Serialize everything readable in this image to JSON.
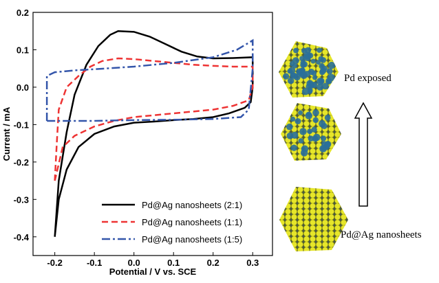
{
  "chart_data": {
    "type": "line",
    "x_label": "Potential / V vs. SCE",
    "y_label": "Current / mA",
    "xlim": [
      -0.255,
      0.35
    ],
    "ylim": [
      -0.45,
      0.2
    ],
    "xticks": [
      -0.2,
      -0.1,
      {
        "value": 0,
        "label": "0.0"
      },
      0.1,
      0.2,
      0.3
    ],
    "yticks": [
      0.2,
      0.1,
      {
        "value": 0,
        "label": "0.0"
      },
      -0.1,
      -0.2,
      -0.3,
      -0.4
    ],
    "legend": "lower right",
    "series": [
      {
        "name": "Pd@Ag nanosheets (2:1)",
        "color": "#000000",
        "dash": "solid",
        "x": [
          -0.2,
          -0.19,
          -0.17,
          -0.15,
          -0.12,
          -0.09,
          -0.06,
          -0.04,
          0.0,
          0.04,
          0.08,
          0.12,
          0.16,
          0.2,
          0.25,
          0.3,
          0.3,
          0.295,
          0.28,
          0.24,
          0.2,
          0.15,
          0.1,
          0.05,
          0.0,
          -0.05,
          -0.1,
          -0.14,
          -0.17,
          -0.19,
          -0.2
        ],
        "values": [
          -0.4,
          -0.25,
          -0.12,
          -0.02,
          0.06,
          0.11,
          0.14,
          0.15,
          0.148,
          0.135,
          0.115,
          0.095,
          0.082,
          0.077,
          0.078,
          0.08,
          0.0,
          -0.04,
          -0.055,
          -0.07,
          -0.08,
          -0.085,
          -0.088,
          -0.092,
          -0.095,
          -0.105,
          -0.125,
          -0.16,
          -0.22,
          -0.3,
          -0.4
        ]
      },
      {
        "name": "Pd@Ag nanosheets (1:1)",
        "color": "#ee3333",
        "dash": "dashed",
        "x": [
          -0.2,
          -0.195,
          -0.19,
          -0.17,
          -0.14,
          -0.11,
          -0.08,
          -0.04,
          0.0,
          0.05,
          0.1,
          0.15,
          0.2,
          0.25,
          0.3,
          0.3,
          0.29,
          0.25,
          0.2,
          0.15,
          0.1,
          0.05,
          0.0,
          -0.05,
          -0.1,
          -0.15,
          -0.18,
          -0.2
        ],
        "values": [
          -0.25,
          -0.15,
          -0.06,
          0.0,
          0.03,
          0.055,
          0.07,
          0.077,
          0.075,
          0.07,
          0.065,
          0.06,
          0.057,
          0.055,
          0.055,
          0.0,
          -0.035,
          -0.05,
          -0.06,
          -0.065,
          -0.07,
          -0.075,
          -0.08,
          -0.09,
          -0.105,
          -0.13,
          -0.16,
          -0.25
        ]
      },
      {
        "name": "Pd@Ag nanosheets (1:5)",
        "color": "#3355aa",
        "dash": "dashdot",
        "x": [
          -0.22,
          -0.22,
          -0.2,
          -0.15,
          -0.1,
          0.0,
          0.1,
          0.2,
          0.26,
          0.3,
          0.3,
          0.29,
          0.27,
          0.2,
          0.1,
          0.0,
          -0.1,
          -0.2,
          -0.22
        ],
        "values": [
          -0.09,
          0.03,
          0.04,
          0.045,
          0.048,
          0.055,
          0.065,
          0.08,
          0.1,
          0.125,
          0.05,
          -0.06,
          -0.08,
          -0.085,
          -0.087,
          -0.088,
          -0.09,
          -0.09,
          -0.09
        ]
      }
    ],
    "annotations": [
      "Pd exposed",
      "Pd@Ag nanosheets"
    ]
  }
}
